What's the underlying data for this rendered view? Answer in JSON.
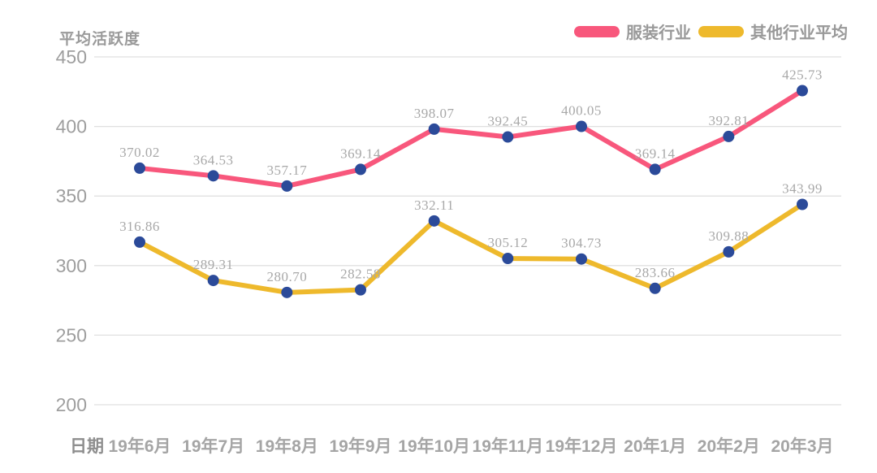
{
  "colors": {
    "background": "#FFFFFF",
    "grid": "#E0E0E0",
    "tick_text": "#9E9E9E",
    "data_label": "#A8A8A8",
    "x_label": "#A5A5A5",
    "series_clothing": "#F8577C",
    "series_other": "#EEB92C",
    "marker": "#2B4A99"
  },
  "chart_data": {
    "type": "line",
    "title": "",
    "y_axis_title": "平均活跃度",
    "x_axis_prefix": "日期",
    "categories": [
      "19年6月",
      "19年7月",
      "19年8月",
      "19年9月",
      "19年10月",
      "19年11月",
      "19年12月",
      "20年1月",
      "20年2月",
      "20年3月"
    ],
    "series": [
      {
        "name": "服装行业",
        "color": "#F8577C",
        "values": [
          370.02,
          364.53,
          357.17,
          369.14,
          398.07,
          392.45,
          400.05,
          369.14,
          392.81,
          425.73
        ],
        "labels": [
          "370.02",
          "364.53",
          "357.17",
          "369.14",
          "398.07",
          "392.45",
          "400.05",
          "369.14",
          "392.81",
          "425.73"
        ]
      },
      {
        "name": "其他行业平均",
        "color": "#EEB92C",
        "values": [
          316.86,
          289.31,
          280.7,
          282.58,
          332.11,
          305.12,
          304.73,
          283.66,
          309.88,
          343.99
        ],
        "labels": [
          "316.86",
          "289.31",
          "280.70",
          "282.58",
          "332.11",
          "305.12",
          "304.73",
          "283.66",
          "309.88",
          "343.99"
        ]
      }
    ],
    "marker_color": "#2B4A99",
    "y_ticks": [
      450,
      400,
      350,
      300,
      250,
      200
    ],
    "ylim": [
      200,
      450
    ],
    "grid": true,
    "legend_position": "top-right"
  }
}
